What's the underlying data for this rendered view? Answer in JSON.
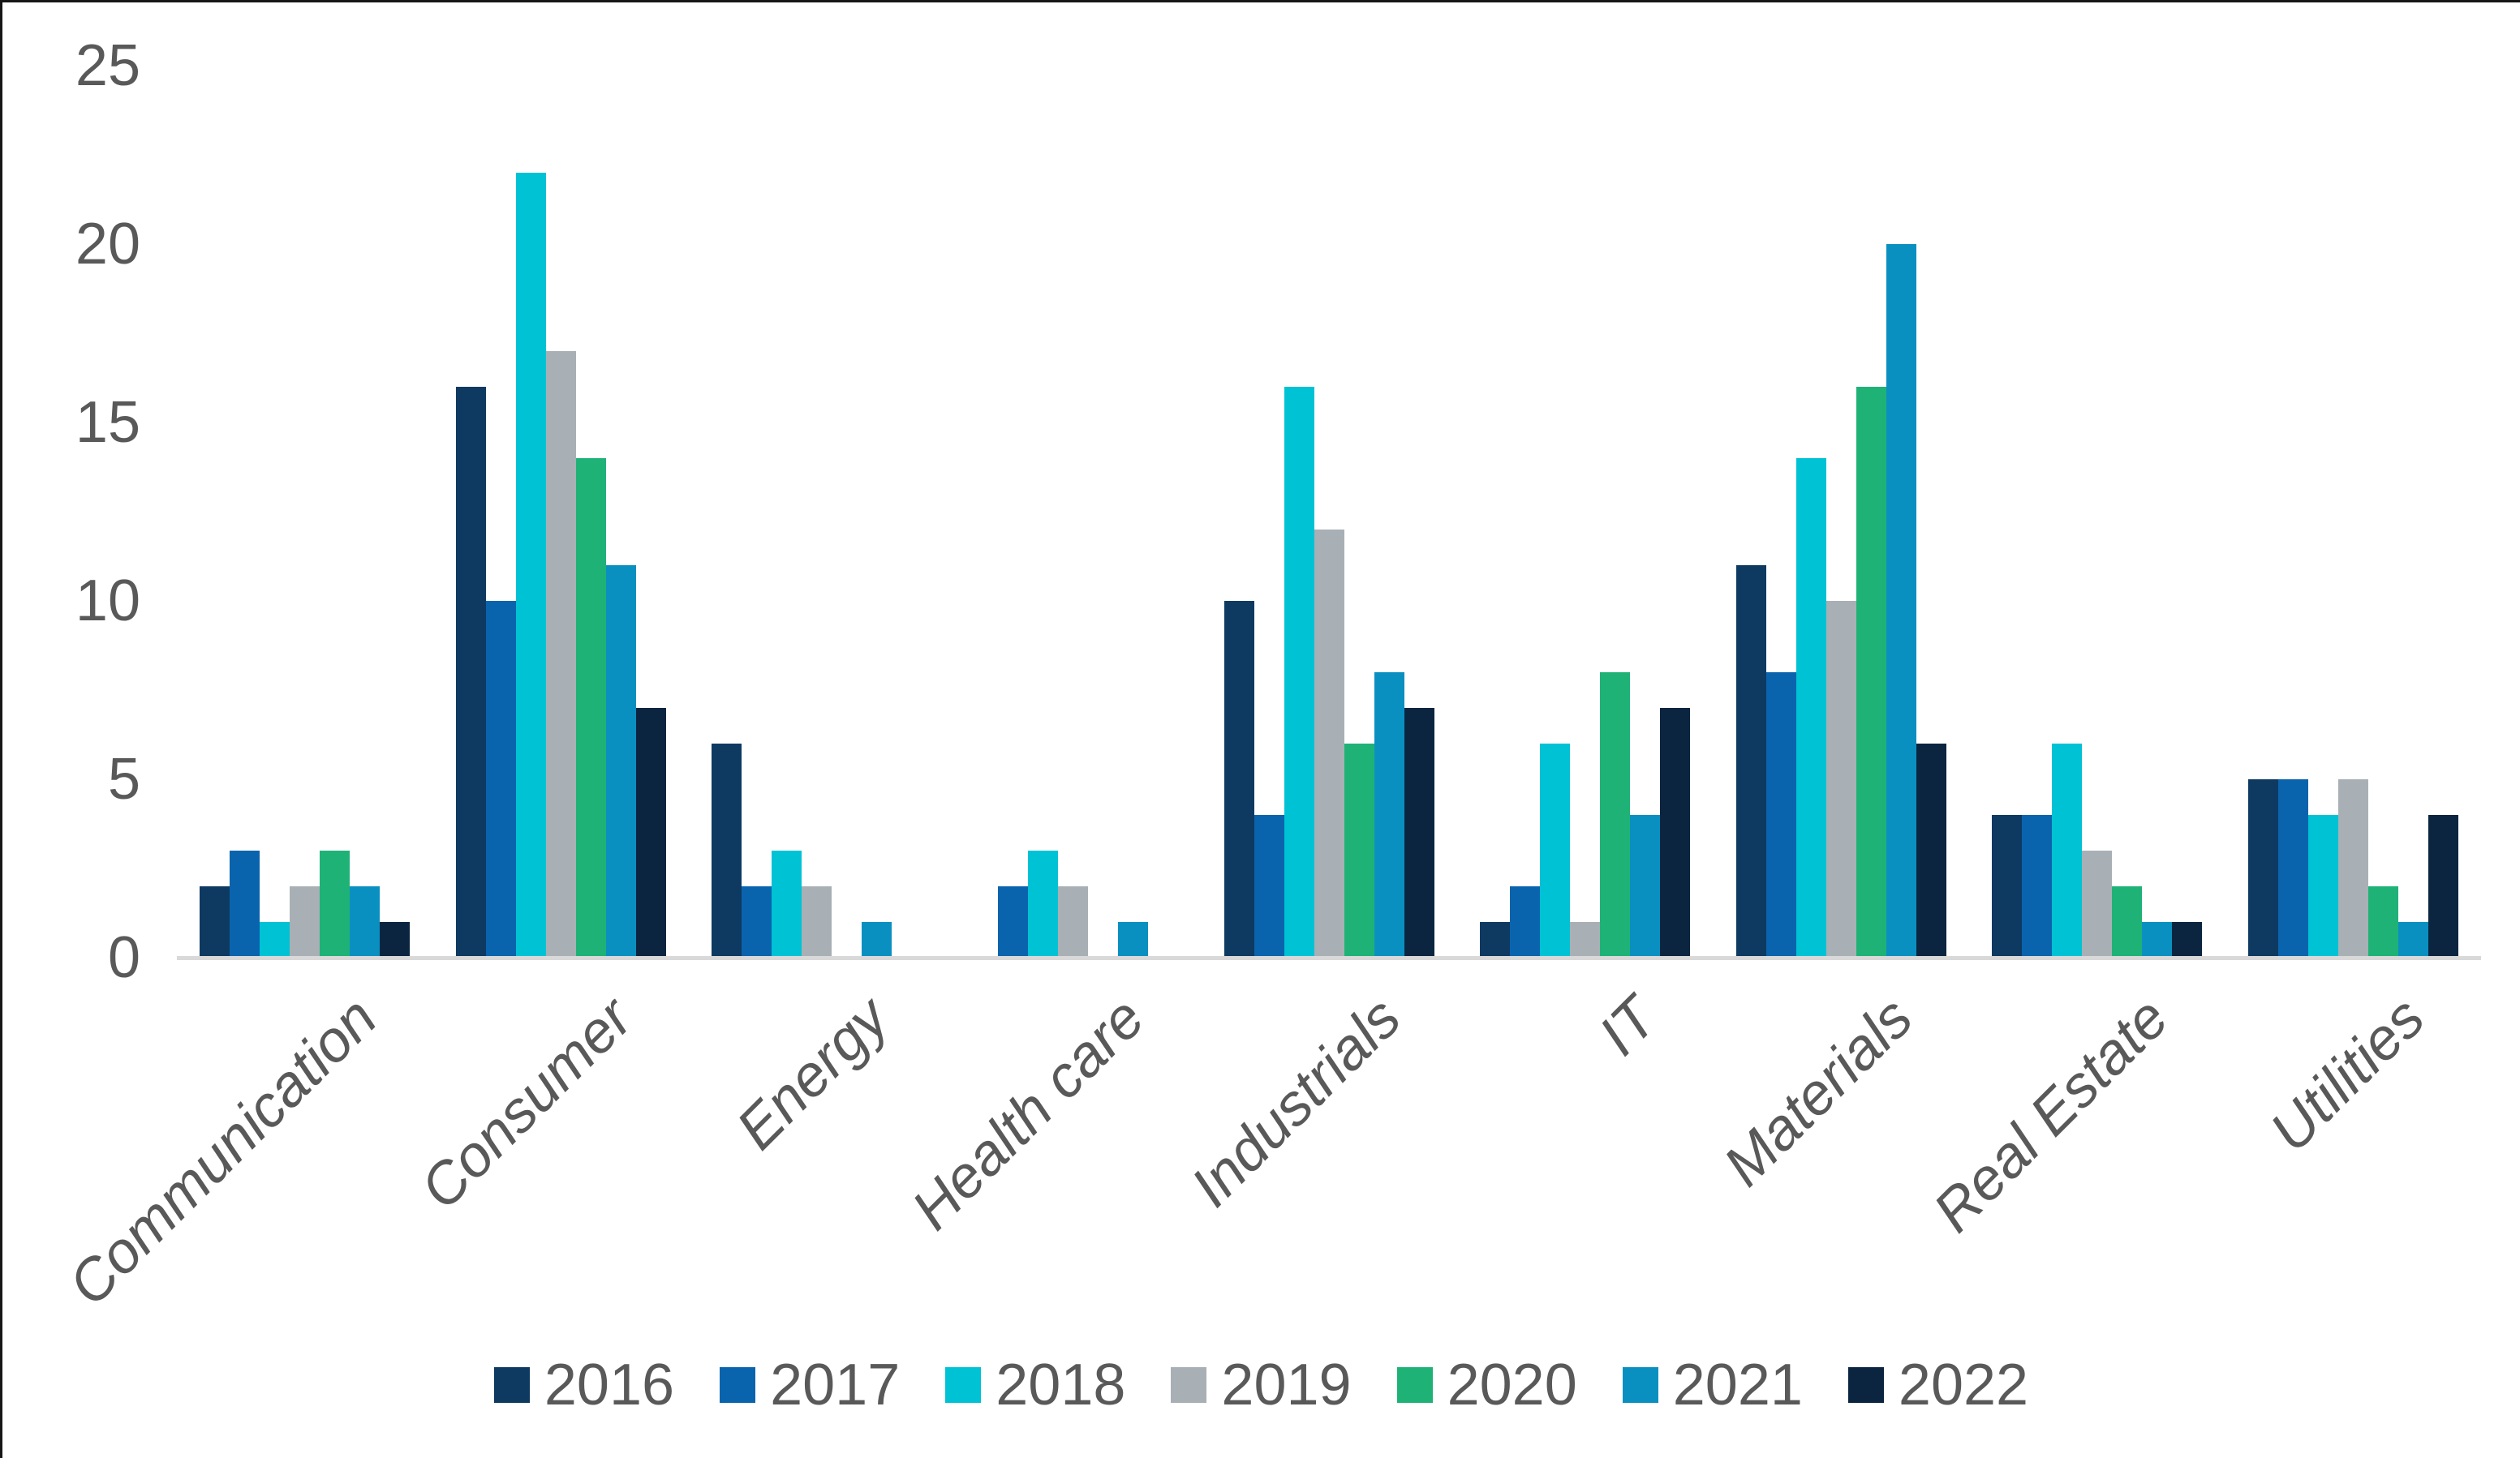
{
  "chart_data": {
    "type": "bar",
    "title": "",
    "categories": [
      "Communication",
      "Consumer",
      "Energy",
      "Health care",
      "Industrials",
      "IT",
      "Materials",
      "Real Estate",
      "Utilities"
    ],
    "series": [
      {
        "name": "2016",
        "color": "#0e3a62",
        "values": [
          2,
          16,
          6,
          0,
          10,
          1,
          11,
          4,
          5
        ]
      },
      {
        "name": "2017",
        "color": "#0a64ad",
        "values": [
          3,
          10,
          2,
          2,
          4,
          2,
          8,
          4,
          5
        ]
      },
      {
        "name": "2018",
        "color": "#00c2d5",
        "values": [
          1,
          22,
          3,
          3,
          16,
          6,
          14,
          6,
          4
        ]
      },
      {
        "name": "2019",
        "color": "#a8b0b5",
        "values": [
          2,
          17,
          2,
          2,
          12,
          1,
          10,
          3,
          5
        ]
      },
      {
        "name": "2020",
        "color": "#1fb277",
        "values": [
          3,
          14,
          0,
          0,
          6,
          8,
          16,
          2,
          2
        ]
      },
      {
        "name": "2021",
        "color": "#0a90c0",
        "values": [
          2,
          11,
          1,
          1,
          8,
          4,
          20,
          1,
          1
        ]
      },
      {
        "name": "2022",
        "color": "#0b2540",
        "values": [
          1,
          7,
          0,
          0,
          7,
          7,
          6,
          1,
          4
        ]
      }
    ],
    "ylim": [
      0,
      25
    ],
    "yticks": [
      0,
      5,
      10,
      15,
      20,
      25
    ],
    "grid": false,
    "legend_position": "bottom",
    "axis_text_color": "#595959",
    "axis_line_color": "#d9d9d9"
  }
}
